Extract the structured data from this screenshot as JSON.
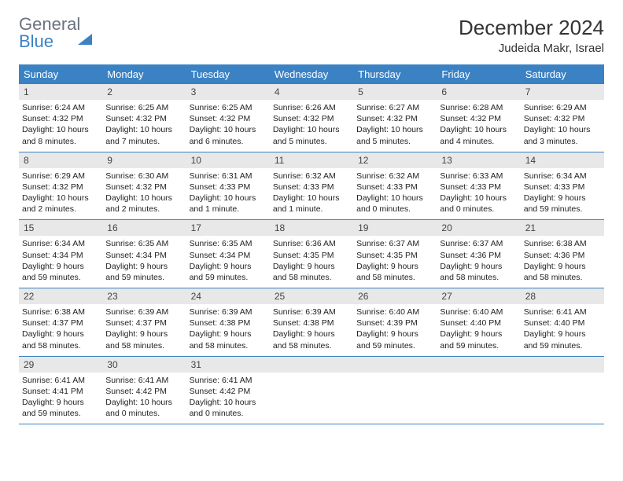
{
  "brand": {
    "part1": "General",
    "part2": "Blue"
  },
  "title": "December 2024",
  "location": "Judeida Makr, Israel",
  "colors": {
    "header_bg": "#3b82c4",
    "header_text": "#ffffff",
    "daynum_bg": "#e8e8e8",
    "border": "#3b82c4",
    "background": "#ffffff",
    "text": "#222222",
    "brand_gray": "#6b7280",
    "brand_blue": "#3b82c4"
  },
  "typography": {
    "title_fontsize": 26,
    "location_fontsize": 15,
    "dayheader_fontsize": 13,
    "daynum_fontsize": 12,
    "dayinfo_fontsize": 10.5
  },
  "dayNames": [
    "Sunday",
    "Monday",
    "Tuesday",
    "Wednesday",
    "Thursday",
    "Friday",
    "Saturday"
  ],
  "weeks": [
    [
      {
        "n": "1",
        "sr": "6:24 AM",
        "ss": "4:32 PM",
        "dl": "10 hours and 8 minutes."
      },
      {
        "n": "2",
        "sr": "6:25 AM",
        "ss": "4:32 PM",
        "dl": "10 hours and 7 minutes."
      },
      {
        "n": "3",
        "sr": "6:25 AM",
        "ss": "4:32 PM",
        "dl": "10 hours and 6 minutes."
      },
      {
        "n": "4",
        "sr": "6:26 AM",
        "ss": "4:32 PM",
        "dl": "10 hours and 5 minutes."
      },
      {
        "n": "5",
        "sr": "6:27 AM",
        "ss": "4:32 PM",
        "dl": "10 hours and 5 minutes."
      },
      {
        "n": "6",
        "sr": "6:28 AM",
        "ss": "4:32 PM",
        "dl": "10 hours and 4 minutes."
      },
      {
        "n": "7",
        "sr": "6:29 AM",
        "ss": "4:32 PM",
        "dl": "10 hours and 3 minutes."
      }
    ],
    [
      {
        "n": "8",
        "sr": "6:29 AM",
        "ss": "4:32 PM",
        "dl": "10 hours and 2 minutes."
      },
      {
        "n": "9",
        "sr": "6:30 AM",
        "ss": "4:32 PM",
        "dl": "10 hours and 2 minutes."
      },
      {
        "n": "10",
        "sr": "6:31 AM",
        "ss": "4:33 PM",
        "dl": "10 hours and 1 minute."
      },
      {
        "n": "11",
        "sr": "6:32 AM",
        "ss": "4:33 PM",
        "dl": "10 hours and 1 minute."
      },
      {
        "n": "12",
        "sr": "6:32 AM",
        "ss": "4:33 PM",
        "dl": "10 hours and 0 minutes."
      },
      {
        "n": "13",
        "sr": "6:33 AM",
        "ss": "4:33 PM",
        "dl": "10 hours and 0 minutes."
      },
      {
        "n": "14",
        "sr": "6:34 AM",
        "ss": "4:33 PM",
        "dl": "9 hours and 59 minutes."
      }
    ],
    [
      {
        "n": "15",
        "sr": "6:34 AM",
        "ss": "4:34 PM",
        "dl": "9 hours and 59 minutes."
      },
      {
        "n": "16",
        "sr": "6:35 AM",
        "ss": "4:34 PM",
        "dl": "9 hours and 59 minutes."
      },
      {
        "n": "17",
        "sr": "6:35 AM",
        "ss": "4:34 PM",
        "dl": "9 hours and 59 minutes."
      },
      {
        "n": "18",
        "sr": "6:36 AM",
        "ss": "4:35 PM",
        "dl": "9 hours and 58 minutes."
      },
      {
        "n": "19",
        "sr": "6:37 AM",
        "ss": "4:35 PM",
        "dl": "9 hours and 58 minutes."
      },
      {
        "n": "20",
        "sr": "6:37 AM",
        "ss": "4:36 PM",
        "dl": "9 hours and 58 minutes."
      },
      {
        "n": "21",
        "sr": "6:38 AM",
        "ss": "4:36 PM",
        "dl": "9 hours and 58 minutes."
      }
    ],
    [
      {
        "n": "22",
        "sr": "6:38 AM",
        "ss": "4:37 PM",
        "dl": "9 hours and 58 minutes."
      },
      {
        "n": "23",
        "sr": "6:39 AM",
        "ss": "4:37 PM",
        "dl": "9 hours and 58 minutes."
      },
      {
        "n": "24",
        "sr": "6:39 AM",
        "ss": "4:38 PM",
        "dl": "9 hours and 58 minutes."
      },
      {
        "n": "25",
        "sr": "6:39 AM",
        "ss": "4:38 PM",
        "dl": "9 hours and 58 minutes."
      },
      {
        "n": "26",
        "sr": "6:40 AM",
        "ss": "4:39 PM",
        "dl": "9 hours and 59 minutes."
      },
      {
        "n": "27",
        "sr": "6:40 AM",
        "ss": "4:40 PM",
        "dl": "9 hours and 59 minutes."
      },
      {
        "n": "28",
        "sr": "6:41 AM",
        "ss": "4:40 PM",
        "dl": "9 hours and 59 minutes."
      }
    ],
    [
      {
        "n": "29",
        "sr": "6:41 AM",
        "ss": "4:41 PM",
        "dl": "9 hours and 59 minutes."
      },
      {
        "n": "30",
        "sr": "6:41 AM",
        "ss": "4:42 PM",
        "dl": "10 hours and 0 minutes."
      },
      {
        "n": "31",
        "sr": "6:41 AM",
        "ss": "4:42 PM",
        "dl": "10 hours and 0 minutes."
      },
      null,
      null,
      null,
      null
    ]
  ],
  "labels": {
    "sunrise": "Sunrise:",
    "sunset": "Sunset:",
    "daylight": "Daylight:"
  }
}
